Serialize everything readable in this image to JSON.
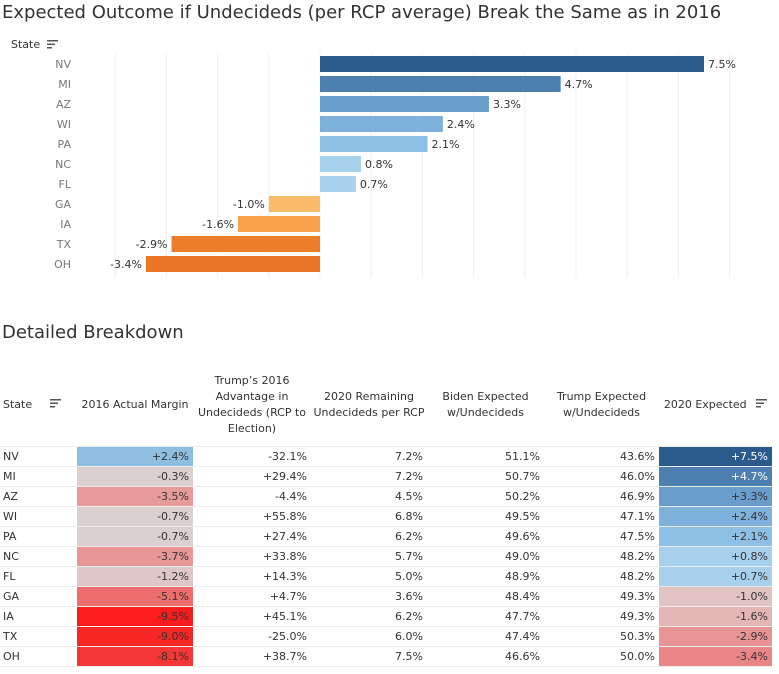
{
  "title": "Expected Outcome if Undecideds (per RCP average) Break the Same as in 2016",
  "axis_header": "State",
  "chart_data": {
    "type": "bar",
    "orientation": "horizontal",
    "title": "Expected Outcome if Undecideds (per RCP average) Break the Same as in 2016",
    "ylabel": "State",
    "categories": [
      "NV",
      "MI",
      "AZ",
      "WI",
      "PA",
      "NC",
      "FL",
      "GA",
      "IA",
      "TX",
      "OH"
    ],
    "values": [
      7.5,
      4.7,
      3.3,
      2.4,
      2.1,
      0.8,
      0.7,
      -1.0,
      -1.6,
      -2.9,
      -3.4
    ],
    "labels": [
      "7.5%",
      "4.7%",
      "3.3%",
      "2.4%",
      "2.1%",
      "0.8%",
      "0.7%",
      "-1.0%",
      "-1.6%",
      "-2.9%",
      "-3.4%"
    ],
    "colors": [
      "#2b5b8c",
      "#4d7fb1",
      "#6a9ccc",
      "#7eb2dd",
      "#8ebfe4",
      "#a7d0ec",
      "#a7d0ec",
      "#fbbb6b",
      "#f6a04b",
      "#ee7d2a",
      "#ea7526"
    ],
    "xlim": [
      -4.5,
      7.8
    ],
    "grid": true
  },
  "breakdown": {
    "title": "Detailed Breakdown",
    "columns": [
      "State",
      "2016 Actual Margin",
      "Trump’s 2016 Advantage in Undecideds (RCP to Election)",
      "2020 Remaining Undecideds per RCP",
      "Biden Expected w/Undecideds",
      "Trump Expected w/Undecideds",
      "2020 Expected"
    ],
    "rows": [
      {
        "state": "NV",
        "margin2016": "+2.4%",
        "adv": "-32.1%",
        "undec": "7.2%",
        "biden": "51.1%",
        "trump": "43.6%",
        "exp": "+7.5%",
        "margin_color": "#8fbfe0",
        "exp_color": "#2b5b8c"
      },
      {
        "state": "MI",
        "margin2016": "-0.3%",
        "adv": "+29.4%",
        "undec": "7.2%",
        "biden": "50.7%",
        "trump": "46.0%",
        "exp": "+4.7%",
        "margin_color": "#dccfcf",
        "exp_color": "#4d7fb1"
      },
      {
        "state": "AZ",
        "margin2016": "-3.5%",
        "adv": "-4.4%",
        "undec": "4.5%",
        "biden": "50.2%",
        "trump": "46.9%",
        "exp": "+3.3%",
        "margin_color": "#e89b9b",
        "exp_color": "#6a9ccc"
      },
      {
        "state": "WI",
        "margin2016": "-0.7%",
        "adv": "+55.8%",
        "undec": "6.8%",
        "biden": "49.5%",
        "trump": "47.1%",
        "exp": "+2.4%",
        "margin_color": "#dccfcf",
        "exp_color": "#7eb2dd"
      },
      {
        "state": "PA",
        "margin2016": "-0.7%",
        "adv": "+27.4%",
        "undec": "6.2%",
        "biden": "49.6%",
        "trump": "47.5%",
        "exp": "+2.1%",
        "margin_color": "#dccfcf",
        "exp_color": "#8ebfe4"
      },
      {
        "state": "NC",
        "margin2016": "-3.7%",
        "adv": "+33.8%",
        "undec": "5.7%",
        "biden": "49.0%",
        "trump": "48.2%",
        "exp": "+0.8%",
        "margin_color": "#e89696",
        "exp_color": "#a7d0ec"
      },
      {
        "state": "FL",
        "margin2016": "-1.2%",
        "adv": "+14.3%",
        "undec": "5.0%",
        "biden": "48.9%",
        "trump": "48.2%",
        "exp": "+0.7%",
        "margin_color": "#dfc7c7",
        "exp_color": "#a7d0ec"
      },
      {
        "state": "GA",
        "margin2016": "-5.1%",
        "adv": "+4.7%",
        "undec": "3.6%",
        "biden": "48.4%",
        "trump": "49.3%",
        "exp": "-1.0%",
        "margin_color": "#ee6d6d",
        "exp_color": "#e2c3c3"
      },
      {
        "state": "IA",
        "margin2016": "-9.5%",
        "adv": "+45.1%",
        "undec": "6.2%",
        "biden": "47.7%",
        "trump": "49.3%",
        "exp": "-1.6%",
        "margin_color": "#fb1c1c",
        "exp_color": "#e4b6b6"
      },
      {
        "state": "TX",
        "margin2016": "-9.0%",
        "adv": "-25.0%",
        "undec": "6.0%",
        "biden": "47.4%",
        "trump": "50.3%",
        "exp": "-2.9%",
        "margin_color": "#f92626",
        "exp_color": "#e99494"
      },
      {
        "state": "OH",
        "margin2016": "-8.1%",
        "adv": "+38.7%",
        "undec": "7.5%",
        "biden": "46.6%",
        "trump": "50.0%",
        "exp": "-3.4%",
        "margin_color": "#f53636",
        "exp_color": "#ea8585"
      }
    ]
  }
}
